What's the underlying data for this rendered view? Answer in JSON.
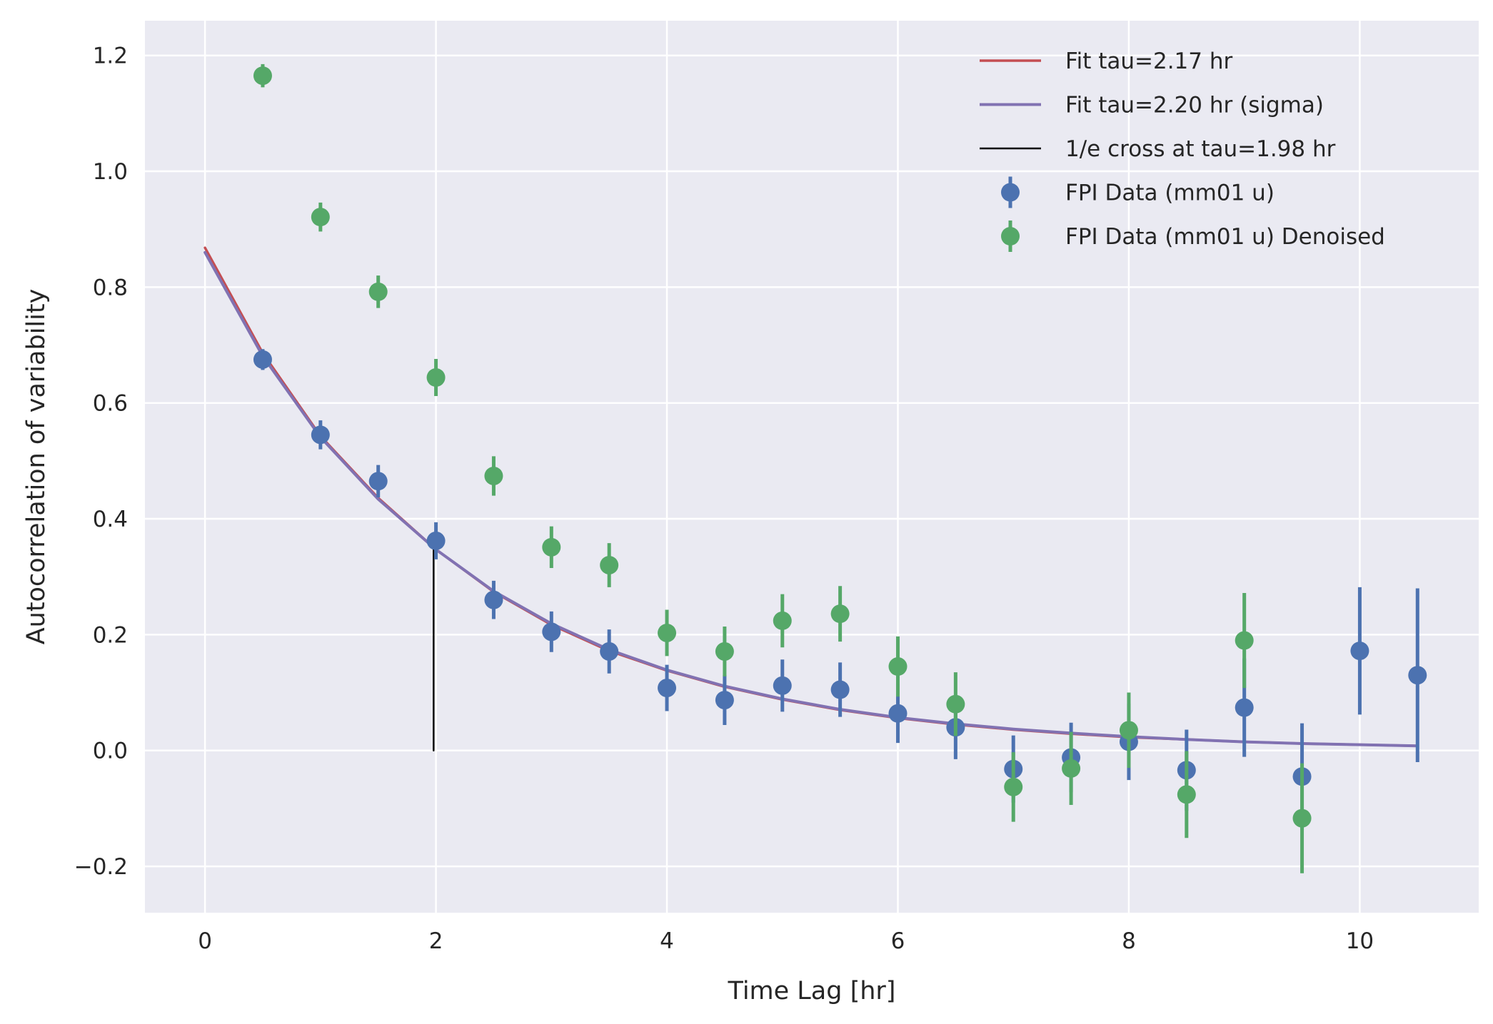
{
  "chart_data": {
    "type": "scatter",
    "title": "",
    "xlabel": "Time Lag [hr]",
    "ylabel": "Autocorrelation of variability",
    "xlim": [
      -0.52,
      11.03
    ],
    "ylim": [
      -0.28,
      1.26
    ],
    "xticks": [
      0,
      2,
      4,
      6,
      8,
      10
    ],
    "xtick_labels": [
      "0",
      "2",
      "4",
      "6",
      "8",
      "10"
    ],
    "yticks": [
      -0.2,
      0.0,
      0.2,
      0.4,
      0.6,
      0.8,
      1.0,
      1.2
    ],
    "ytick_labels": [
      "−0.2",
      "0.0",
      "0.2",
      "0.4",
      "0.6",
      "0.8",
      "1.0",
      "1.2"
    ],
    "grid": true,
    "legend_position": "top-right",
    "style": {
      "background": "#eaeaf2",
      "grid_color": "#ffffff"
    },
    "lines": [
      {
        "name": "Fit tau=2.17 hr",
        "color": "#c44e52",
        "width": 3.5,
        "x": [
          0,
          0.5,
          1,
          1.5,
          2,
          2.5,
          3,
          3.5,
          4,
          4.5,
          5,
          5.5,
          6,
          6.5,
          7,
          7.5,
          8,
          8.5,
          9,
          9.5,
          10,
          10.5
        ],
        "y": [
          0.868,
          0.686,
          0.543,
          0.436,
          0.347,
          0.274,
          0.217,
          0.172,
          0.138,
          0.11,
          0.088,
          0.07,
          0.056,
          0.045,
          0.036,
          0.029,
          0.023,
          0.019,
          0.015,
          0.012,
          0.01,
          0.008
        ]
      },
      {
        "name": "Fit tau=2.20 hr (sigma)",
        "color": "#8172b2",
        "width": 4,
        "x": [
          0,
          0.5,
          1,
          1.5,
          2,
          2.5,
          3,
          3.5,
          4,
          4.5,
          5,
          5.5,
          6,
          6.5,
          7,
          7.5,
          8,
          8.5,
          9,
          9.5,
          10,
          10.5
        ],
        "y": [
          0.86,
          0.681,
          0.541,
          0.434,
          0.347,
          0.275,
          0.219,
          0.174,
          0.139,
          0.111,
          0.089,
          0.071,
          0.057,
          0.046,
          0.037,
          0.03,
          0.024,
          0.019,
          0.015,
          0.012,
          0.01,
          0.008
        ]
      },
      {
        "name": "1/e cross at tau=1.98 hr",
        "color": "#000000",
        "width": 2.5,
        "x": [
          1.98,
          1.98
        ],
        "y": [
          0.0,
          0.347
        ]
      }
    ],
    "series": [
      {
        "name": "FPI Data (mm01 u)",
        "color": "#4c72b0",
        "x": [
          0.5,
          1,
          1.5,
          2,
          2.5,
          3,
          3.5,
          4,
          4.5,
          5,
          5.5,
          6,
          6.5,
          7,
          7.5,
          8,
          8.5,
          9,
          9.5,
          10,
          10.5
        ],
        "y": [
          0.675,
          0.545,
          0.465,
          0.362,
          0.26,
          0.205,
          0.171,
          0.108,
          0.087,
          0.112,
          0.105,
          0.064,
          0.04,
          -0.032,
          -0.012,
          0.015,
          -0.034,
          0.074,
          -0.045,
          0.172,
          0.13
        ],
        "yerr": [
          0.018,
          0.025,
          0.028,
          0.032,
          0.033,
          0.035,
          0.038,
          0.04,
          0.043,
          0.045,
          0.047,
          0.051,
          0.055,
          0.058,
          0.06,
          0.066,
          0.07,
          0.085,
          0.092,
          0.11,
          0.15
        ]
      },
      {
        "name": "FPI Data (mm01 u) Denoised",
        "color": "#55a868",
        "x": [
          0.5,
          1,
          1.5,
          2,
          2.5,
          3,
          3.5,
          4,
          4.5,
          5,
          5.5,
          6,
          6.5,
          7,
          7.5,
          8,
          8.5,
          9,
          9.5
        ],
        "y": [
          1.165,
          0.921,
          0.792,
          0.644,
          0.474,
          0.351,
          0.32,
          0.203,
          0.171,
          0.224,
          0.236,
          0.145,
          0.08,
          -0.063,
          -0.031,
          0.035,
          -0.076,
          0.19,
          -0.117
        ],
        "yerr": [
          0.02,
          0.025,
          0.028,
          0.032,
          0.034,
          0.036,
          0.038,
          0.04,
          0.043,
          0.046,
          0.048,
          0.052,
          0.055,
          0.06,
          0.063,
          0.065,
          0.075,
          0.082,
          0.095
        ]
      }
    ]
  }
}
